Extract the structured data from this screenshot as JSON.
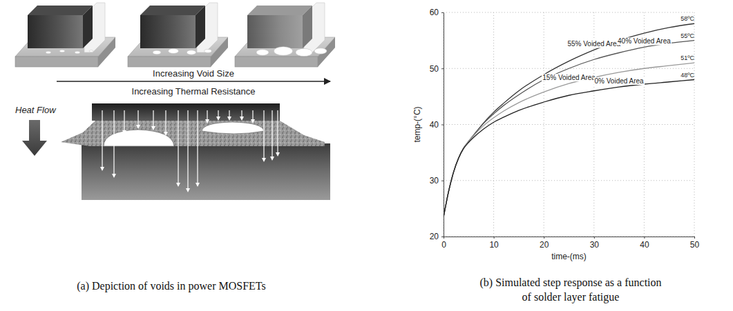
{
  "diagram": {
    "arrow_labels": [
      "Increasing Void Size",
      "Increasing Thermal Resistance"
    ],
    "heat_flow_label": "Heat Flow",
    "caption": [
      "(a) Depiction of voids in power MOSFETs"
    ]
  },
  "chart_data": {
    "type": "line",
    "caption": [
      "(b) Simulated step response as a function",
      "of solder layer fatigue"
    ],
    "x_label": "time-(ms)",
    "y_label": "temp-(°C)",
    "x": [
      0,
      1,
      2,
      3,
      4,
      5,
      6,
      8,
      10,
      12,
      15,
      20,
      25,
      30,
      35,
      40,
      45,
      50
    ],
    "xlim": [
      0,
      50
    ],
    "xticks": [
      0,
      10,
      20,
      30,
      40,
      50
    ],
    "ylim": [
      20,
      60
    ],
    "yticks": [
      20,
      30,
      40,
      50,
      60
    ],
    "grid": true,
    "series": [
      {
        "name": "55% Voided Area",
        "color": "#333333",
        "end_label": "58ºC",
        "values": [
          23.5,
          28,
          31.5,
          34,
          35.8,
          37,
          38.1,
          40.3,
          42.2,
          43.8,
          46,
          48.9,
          51.3,
          53.3,
          55,
          56.3,
          57.3,
          58
        ]
      },
      {
        "name": "40% Voided Area",
        "color": "#555555",
        "end_label": "55ºC",
        "values": [
          23.5,
          28,
          31.5,
          34,
          35.8,
          37,
          38.1,
          40.2,
          41.9,
          43.4,
          45.3,
          48,
          50,
          51.6,
          52.8,
          53.8,
          54.5,
          55
        ]
      },
      {
        "name": "15% Voided Area",
        "color": "#999999",
        "end_label": "51ºC",
        "values": [
          23.5,
          28,
          31.5,
          34,
          35.8,
          37,
          38,
          39.8,
          41.2,
          42.4,
          43.9,
          45.8,
          47.3,
          48.4,
          49.3,
          50,
          50.5,
          51
        ]
      },
      {
        "name": "0% Voided Area",
        "color": "#222222",
        "end_label": "48ºC",
        "values": [
          23.5,
          28,
          31.5,
          34,
          35.7,
          36.8,
          37.7,
          39.2,
          40.4,
          41.3,
          42.5,
          44,
          45.2,
          46,
          46.7,
          47.2,
          47.6,
          48
        ]
      }
    ]
  }
}
